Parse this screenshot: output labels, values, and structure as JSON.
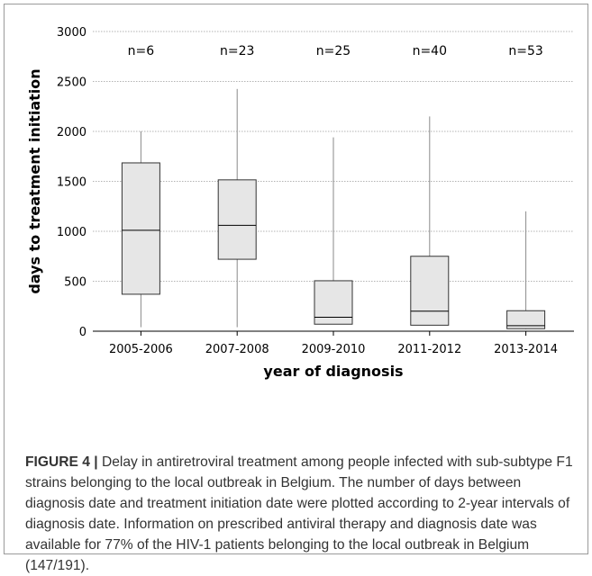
{
  "chart_data": {
    "type": "box",
    "xlabel": "year of diagnosis",
    "ylabel": "days to treatment initiation",
    "ylim": [
      0,
      3000
    ],
    "yticks": [
      0,
      500,
      1000,
      1500,
      2000,
      2500,
      3000
    ],
    "grid": "horizontal",
    "categories": [
      "2005-2006",
      "2007-2008",
      "2009-2010",
      "2011-2012",
      "2013-2014"
    ],
    "annotations": [
      "n=6",
      "n=23",
      "n=25",
      "n=40",
      "n=53"
    ],
    "boxes": [
      {
        "min": 40,
        "q1": 370,
        "median": 1010,
        "q3": 1685,
        "max": 2000
      },
      {
        "min": 40,
        "q1": 720,
        "median": 1060,
        "q3": 1515,
        "max": 2425
      },
      {
        "min": 70,
        "q1": 70,
        "median": 140,
        "q3": 505,
        "max": 1940
      },
      {
        "min": 60,
        "q1": 60,
        "median": 200,
        "q3": 750,
        "max": 2150
      },
      {
        "min": 20,
        "q1": 25,
        "median": 55,
        "q3": 205,
        "max": 1200
      }
    ],
    "box_color": "#e6e6e6"
  },
  "caption": {
    "label": "FIGURE 4 |",
    "text": " Delay in antiretroviral treatment among people infected with sub-subtype F1 strains belonging to the local outbreak in Belgium. The number of days between diagnosis date and treatment initiation date were plotted according to 2-year intervals of diagnosis date. Information on prescribed antiviral therapy and diagnosis date was available for 77% of the HIV-1 patients belonging to the local outbreak in Belgium (147/191)."
  }
}
